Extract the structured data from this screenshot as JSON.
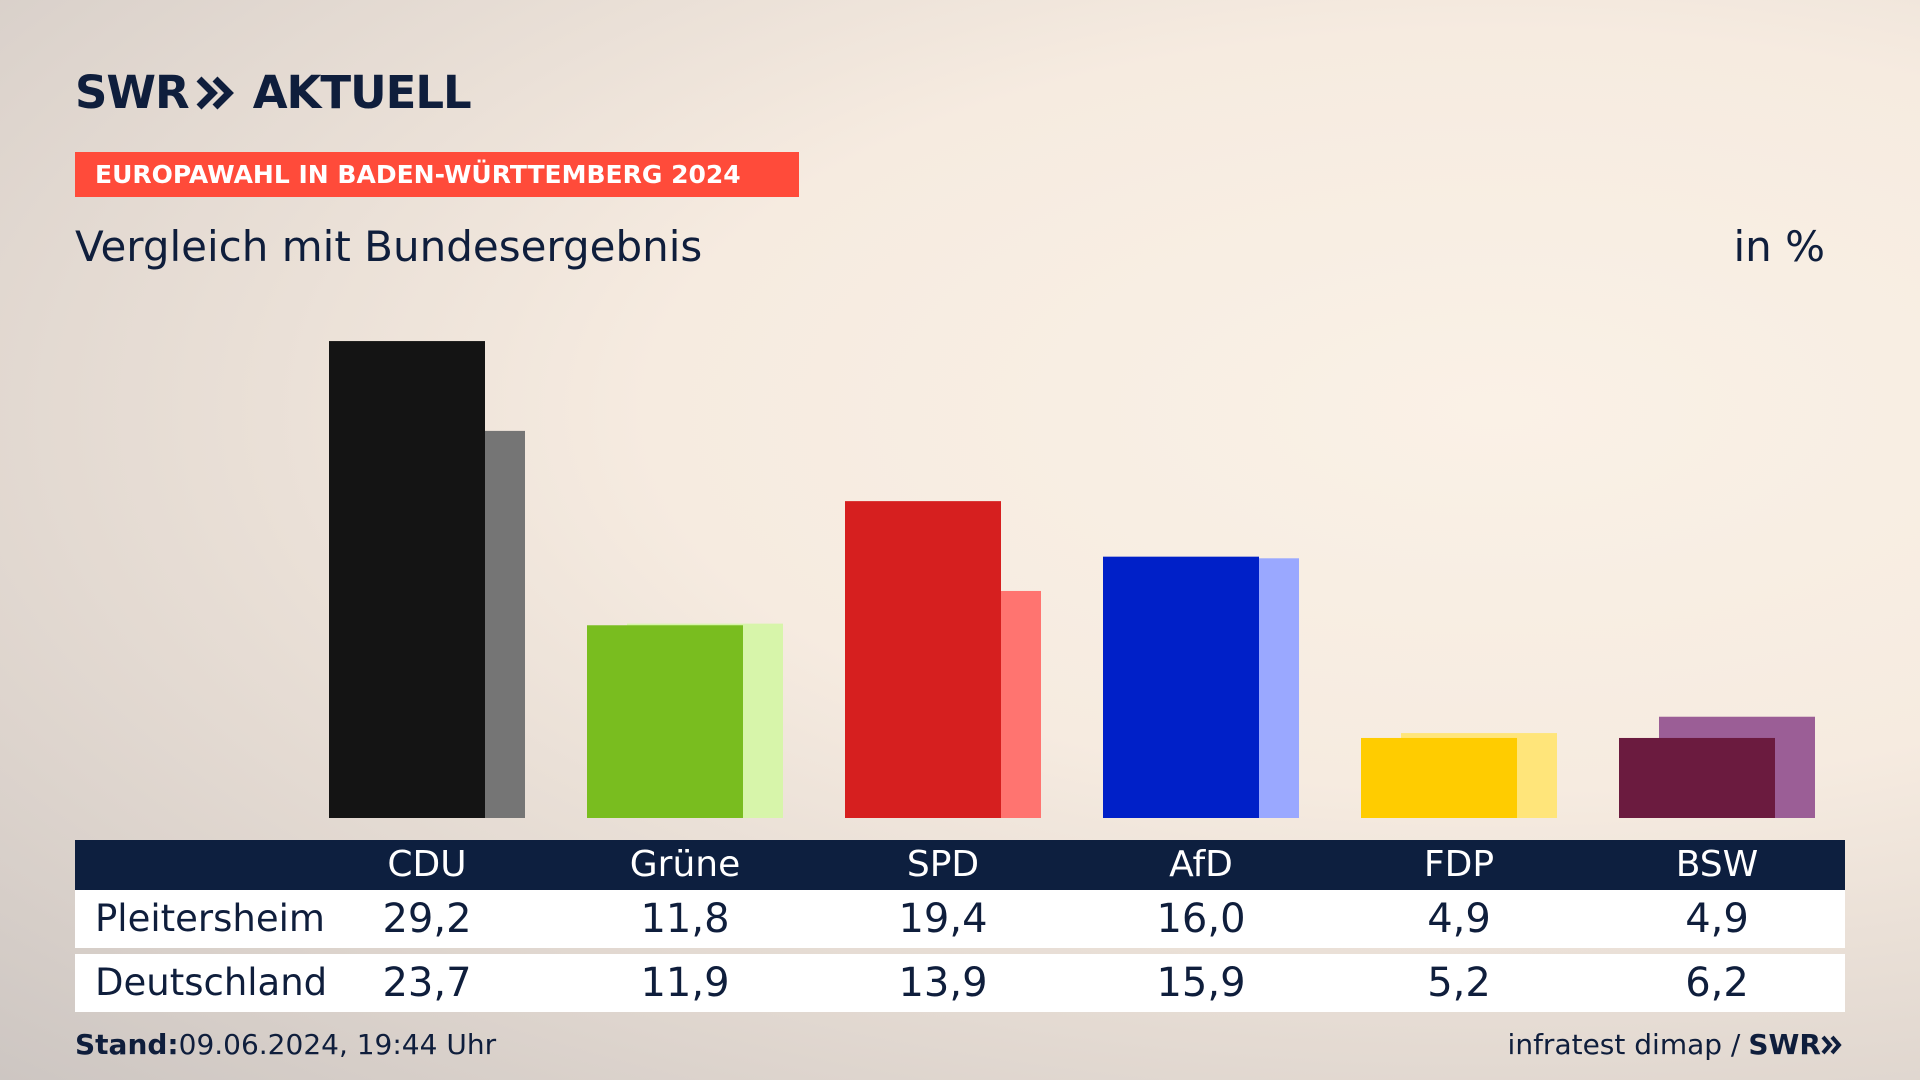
{
  "header": {
    "logo_text_left": "SWR",
    "logo_text_right": "AKTUELL",
    "banner": "EUROPAWAHL IN BADEN-WÜRTTEMBERG 2024",
    "subtitle": "Vergleich mit Bundesergebnis",
    "unit": "in %"
  },
  "chart_data": {
    "type": "bar",
    "title": "Vergleich mit Bundesergebnis",
    "unit": "in %",
    "categories": [
      "CDU",
      "Grüne",
      "SPD",
      "AfD",
      "FDP",
      "BSW"
    ],
    "series": [
      {
        "name": "Pleitersheim",
        "values": [
          29.2,
          11.8,
          19.4,
          16.0,
          4.9,
          4.9
        ]
      },
      {
        "name": "Deutschland",
        "values": [
          23.7,
          11.9,
          13.9,
          15.9,
          5.2,
          6.2
        ]
      }
    ],
    "colors": {
      "primary": [
        "#141414",
        "#79bd1f",
        "#d61f1f",
        "#0020c8",
        "#ffcc00",
        "#6b1b3f"
      ],
      "secondary": [
        "#757575",
        "#d7f5aa",
        "#ff7470",
        "#9aa8ff",
        "#ffe57a",
        "#9b5e96"
      ]
    },
    "ylim": [
      0,
      30
    ],
    "grid": false,
    "legend": "table-below"
  },
  "table": {
    "rows": [
      {
        "label": "Pleitersheim",
        "values": [
          "29,2",
          "11,8",
          "19,4",
          "16,0",
          "4,9",
          "4,9"
        ]
      },
      {
        "label": "Deutschland",
        "values": [
          "23,7",
          "11,9",
          "13,9",
          "15,9",
          "5,2",
          "6,2"
        ]
      }
    ]
  },
  "footer": {
    "stand_label": "Stand:",
    "stand_value": "09.06.2024, 19:44 Uhr",
    "source": "infratest dimap /",
    "source_logo": "SWR"
  },
  "icons": [
    "swr-chevrons-icon"
  ]
}
